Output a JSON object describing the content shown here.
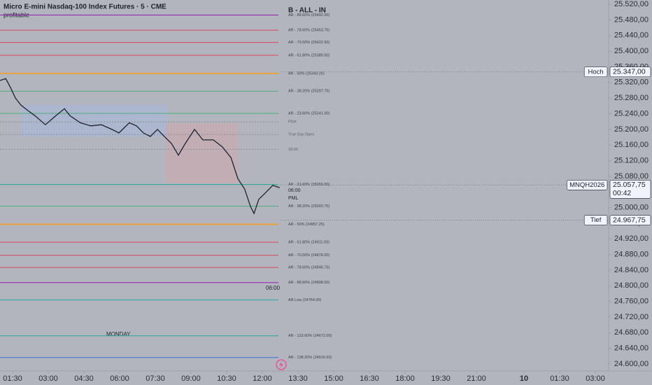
{
  "header": {
    "symbol": "Micro E-mini Nasdaq-100 Index Futures · 5 · CME",
    "indicator": "profitable",
    "overlay_title": "B - ALL - IN"
  },
  "chart_data": {
    "type": "line",
    "x": [
      0.97,
      1.21,
      1.41,
      1.62,
      1.85,
      2.15,
      2.44,
      2.88,
      3.32,
      3.68,
      3.91,
      4.35,
      4.79,
      5.23,
      5.68,
      5.97,
      6.41,
      6.71,
      7.0,
      7.29,
      7.59,
      7.88,
      8.18,
      8.47,
      8.76,
      9.15,
      9.5,
      9.94,
      10.32,
      10.68,
      10.97,
      11.26,
      11.5,
      11.65,
      11.85,
      12.15,
      12.44,
      12.73
    ],
    "series": [
      {
        "name": "MNQH2026",
        "color": "#1e222d",
        "values": [
          25325,
          25330,
          25307,
          25280,
          25262,
          25248,
          25235,
          25212,
          25235,
          25253,
          25235,
          25217,
          25209,
          25212,
          25200,
          25191,
          25217,
          25209,
          25191,
          25182,
          25200,
          25182,
          25164,
          25134,
          25164,
          25200,
          25173,
          25173,
          25155,
          25128,
          25074,
          25047,
          25003,
          24985,
          25021,
          25039,
          25057,
          25051
        ]
      }
    ],
    "xlim": [
      0.97,
      26.56
    ],
    "xticks": [
      {
        "value": 1.5,
        "label": "01:30"
      },
      {
        "value": 3,
        "label": "03:00"
      },
      {
        "value": 4.5,
        "label": "04:30"
      },
      {
        "value": 6,
        "label": "06:00"
      },
      {
        "value": 7.5,
        "label": "07:30"
      },
      {
        "value": 9,
        "label": "09:00"
      },
      {
        "value": 10.5,
        "label": "10:30"
      },
      {
        "value": 12,
        "label": "12:00"
      },
      {
        "value": 13.5,
        "label": "13:30"
      },
      {
        "value": 15,
        "label": "15:00"
      },
      {
        "value": 16.5,
        "label": "16:30"
      },
      {
        "value": 18,
        "label": "18:00"
      },
      {
        "value": 19.5,
        "label": "19:30"
      },
      {
        "value": 21,
        "label": "21:00"
      },
      {
        "value": 23,
        "label": "10"
      },
      {
        "value": 24.5,
        "label": "01:30"
      },
      {
        "value": 26,
        "label": "03:00"
      }
    ],
    "ylim": [
      24582,
      25531
    ],
    "yticks": [
      {
        "value": 24600,
        "label": "24.600,00"
      },
      {
        "value": 24640,
        "label": "24.640,00"
      },
      {
        "value": 24680,
        "label": "24.680,00"
      },
      {
        "value": 24720,
        "label": "24.720,00"
      },
      {
        "value": 24760,
        "label": "24.760,00"
      },
      {
        "value": 24800,
        "label": "24.800,00"
      },
      {
        "value": 24840,
        "label": "24.840,00"
      },
      {
        "value": 24880,
        "label": "24.880,00"
      },
      {
        "value": 24920,
        "label": "24.920,00"
      },
      {
        "value": 24960,
        "label": "24.960,00"
      },
      {
        "value": 25000,
        "label": "25.000,00"
      },
      {
        "value": 25040,
        "label": "25.040,00"
      },
      {
        "value": 25080,
        "label": "25.080,00"
      },
      {
        "value": 25120,
        "label": "25.120,00"
      },
      {
        "value": 25160,
        "label": "25.160,00"
      },
      {
        "value": 25200,
        "label": "25.200,00"
      },
      {
        "value": 25240,
        "label": "25.240,00"
      },
      {
        "value": 25280,
        "label": "25.280,00"
      },
      {
        "value": 25320,
        "label": "25.320,00"
      },
      {
        "value": 25360,
        "label": "25.360,00"
      },
      {
        "value": 25400,
        "label": "25.400,00"
      },
      {
        "value": 25440,
        "label": "25.440,00"
      },
      {
        "value": 25480,
        "label": "25.480,00"
      },
      {
        "value": 25520,
        "label": "25.520,00"
      }
    ],
    "levels": [
      {
        "label": "AR - 88.60% (25492.50)",
        "value": 25492.5,
        "color": "#8e24aa"
      },
      {
        "label": "AR - 78.60% (25453.75)",
        "value": 25453.75,
        "color": "#d9475e"
      },
      {
        "label": "AR - 70.50% (25422.50)",
        "value": 25422.5,
        "color": "#d9475e"
      },
      {
        "label": "AR - 61.80% (25389.50)",
        "value": 25389.5,
        "color": "#d9475e"
      },
      {
        "label": "AR - 50% (25343.25)",
        "value": 25343.25,
        "color": "#e8a33c"
      },
      {
        "label": "AR - 38.20% (25297.75)",
        "value": 25297.75,
        "color": "#4caf7d"
      },
      {
        "label": "AR - 23.60% (25241.00)",
        "value": 25241,
        "color": "#4caf7d"
      },
      {
        "label": "PDH",
        "value": 25219,
        "color": "#8a8d96"
      },
      {
        "label": "True Day Open",
        "value": 25187,
        "color": "#8a8d96"
      },
      {
        "label": "18:00",
        "value": 25149,
        "color": "#8a8d96"
      },
      {
        "label": "AR - 21.60% (25059.00)",
        "value": 25059,
        "color": "#26a69a"
      },
      {
        "label": "AR - 38.20% (25003.75)",
        "value": 25003.75,
        "color": "#4caf7d"
      },
      {
        "label": "AR - 50% (24957.25)",
        "value": 24957.25,
        "color": "#e8a33c"
      },
      {
        "label": "AR - 61.80% (24911.50)",
        "value": 24911.5,
        "color": "#d9475e"
      },
      {
        "label": "AR - 70.50% (24878.00)",
        "value": 24878,
        "color": "#d9475e"
      },
      {
        "label": "AR - 78.60% (24846.75)",
        "value": 24846.75,
        "color": "#d9475e"
      },
      {
        "label": "AR - 88.60% (24808.00)",
        "value": 24808,
        "color": "#8e24aa"
      },
      {
        "label": "AR Low (24764.00)",
        "value": 24764,
        "color": "#26a69a"
      },
      {
        "label": "AR - 123.60% (24672.00)",
        "value": 24672,
        "color": "#26a69a"
      },
      {
        "label": "AR - 138.20% (24616.50)",
        "value": 24616.5,
        "color": "#3a6fd8"
      }
    ],
    "markers": [
      {
        "name": "Hoch",
        "value": 25347,
        "label": "25.347,00"
      },
      {
        "name": "MNQH2026",
        "value": 25057.75,
        "label": "25.057,75",
        "countdown": "00:42"
      },
      {
        "name": "Tief",
        "value": 24967.75,
        "label": "24.967,75"
      }
    ],
    "annotations": [
      "06:00",
      "PML",
      "06:00",
      "MONDAY"
    ]
  }
}
